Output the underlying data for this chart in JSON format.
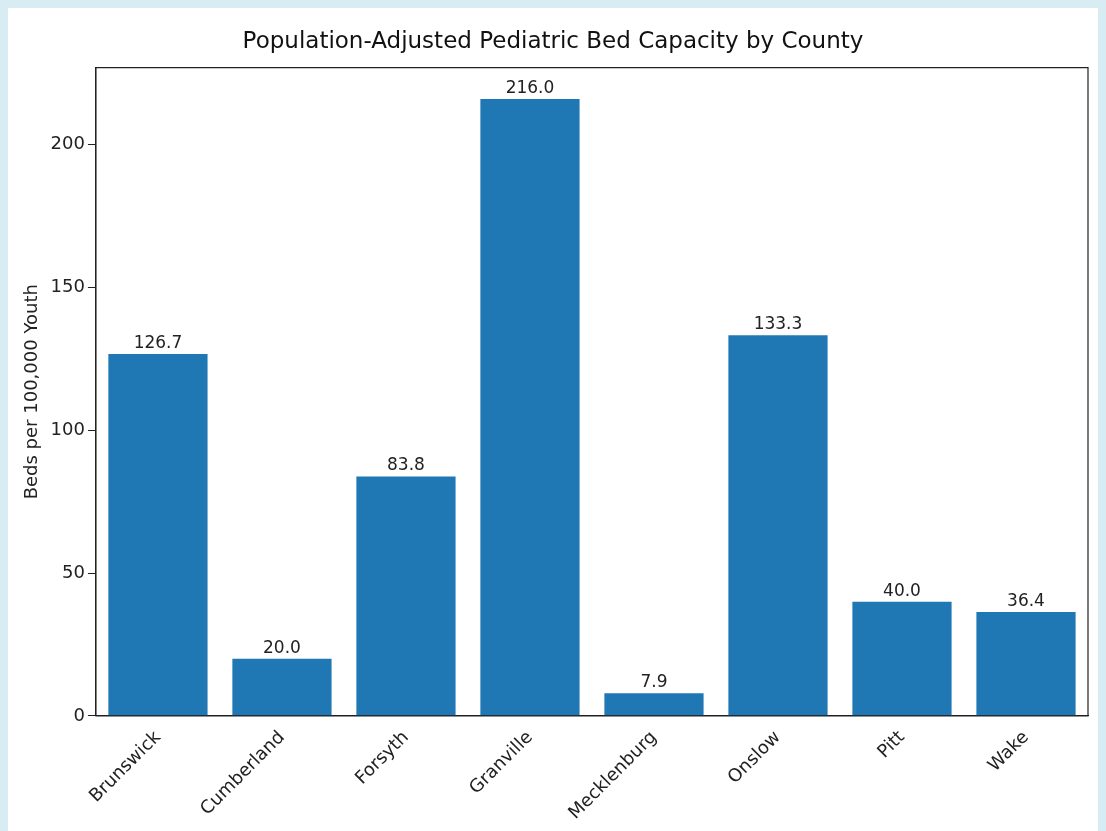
{
  "chart_data": {
    "type": "bar",
    "title": "Population-Adjusted Pediatric Bed Capacity by County",
    "ylabel": "Beds per 100,000 Youth",
    "categories": [
      "Brunswick",
      "Cumberland",
      "Forsyth",
      "Granville",
      "Mecklenburg",
      "Onslow",
      "Pitt",
      "Wake"
    ],
    "values": [
      126.7,
      20.0,
      83.8,
      216.0,
      7.9,
      133.3,
      40.0,
      36.4
    ],
    "value_labels": [
      "126.7",
      "20.0",
      "83.8",
      "216.0",
      "7.9",
      "133.3",
      "40.0",
      "36.4"
    ],
    "color": "#1f77b4",
    "ylim": [
      0,
      227
    ],
    "yticks": [
      0,
      50,
      100,
      150,
      200
    ],
    "grid": false,
    "legend": false
  }
}
